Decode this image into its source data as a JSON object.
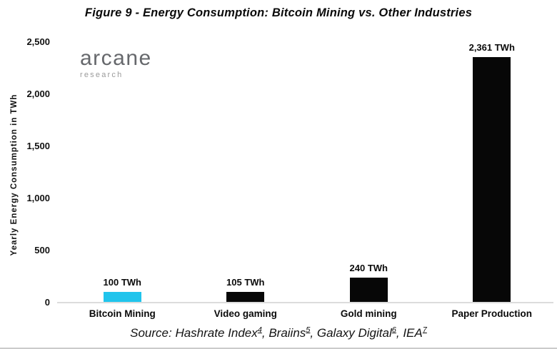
{
  "branding": {
    "name": "arcane",
    "sub": "research"
  },
  "chart_data": {
    "type": "bar",
    "title": "Figure 9 - Energy Consumption: Bitcoin Mining vs. Other Industries",
    "xlabel": "",
    "ylabel": "Yearly Energy Consumption in TWh",
    "ylim": [
      0,
      2500
    ],
    "yticks": [
      0,
      500,
      1000,
      1500,
      2000,
      2500
    ],
    "ytick_labels": [
      "0",
      "500",
      "1,000",
      "1,500",
      "2,000",
      "2,500"
    ],
    "categories": [
      "Bitcoin Mining",
      "Video gaming",
      "Gold mining",
      "Paper Production"
    ],
    "values": [
      100,
      105,
      240,
      2361
    ],
    "value_labels": [
      "100 TWh",
      "105 TWh",
      "240 TWh",
      "2,361 TWh"
    ],
    "bar_colors": [
      "#20c4ec",
      "#070707",
      "#070707",
      "#070707"
    ],
    "grid": false,
    "legend": false,
    "background": "#ffffff"
  },
  "source": {
    "prefix": "Source: ",
    "items": [
      {
        "text": "Hashrate Index",
        "sup": "4"
      },
      {
        "text": "Braiins",
        "sup": "5"
      },
      {
        "text": "Galaxy Digital",
        "sup": "6"
      },
      {
        "text": "IEA",
        "sup": "7"
      }
    ],
    "separator": ", "
  },
  "colors": {
    "accent_cyan": "#20c4ec",
    "bar_black": "#070707",
    "axis_line": "#dcdcdc",
    "logo_gray": "#66686c",
    "logo_sub_gray": "#9b9b9b",
    "text": "#0d0d0d"
  }
}
